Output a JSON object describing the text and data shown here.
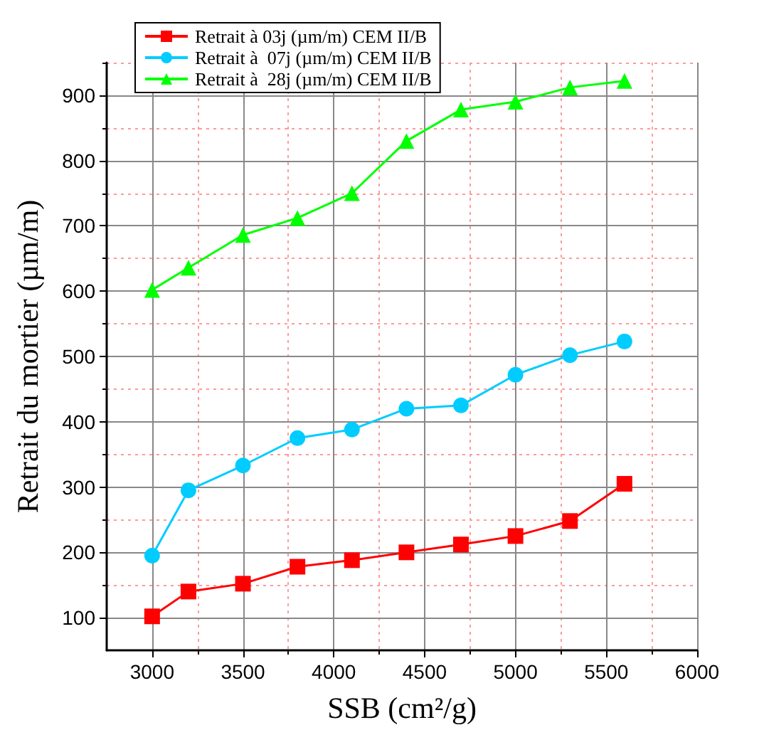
{
  "chart_data": {
    "type": "line",
    "xlabel": "SSB (cm²/g)",
    "ylabel": "Retrait du mortier (µm/m)",
    "x": [
      3000,
      3200,
      3500,
      3800,
      4100,
      4400,
      4700,
      5000,
      5300,
      5600
    ],
    "series": [
      {
        "name": "Retrait à 03j (µm/m) CEM II/B",
        "color": "#ff0000",
        "marker": "square",
        "values": [
          102,
          140,
          152,
          178,
          188,
          200,
          212,
          225,
          248,
          305
        ]
      },
      {
        "name": "Retrait à  07j (µm/m) CEM II/B",
        "color": "#00ccff",
        "marker": "circle",
        "values": [
          195,
          295,
          333,
          375,
          388,
          420,
          425,
          472,
          502,
          523
        ]
      },
      {
        "name": "Retrait à  28j (µm/m) CEM II/B",
        "color": "#00ff00",
        "marker": "triangle",
        "values": [
          602,
          636,
          686,
          712,
          750,
          830,
          878,
          890,
          912,
          922
        ]
      }
    ],
    "xlim": [
      2750,
      6000
    ],
    "xticks": [
      3000,
      {
        "value": 3250,
        "label": null
      },
      3500,
      {
        "value": 3750,
        "label": null
      },
      4000,
      {
        "value": 4250,
        "label": null
      },
      4500,
      {
        "value": 4750,
        "label": null
      },
      5000,
      {
        "value": 5250,
        "label": null
      },
      5500,
      {
        "value": 5750,
        "label": null
      },
      6000
    ],
    "ylim": [
      50,
      950
    ],
    "yticks": [
      100,
      {
        "value": 150,
        "label": null
      },
      200,
      {
        "value": 250,
        "label": null
      },
      300,
      {
        "value": 350,
        "label": null
      },
      400,
      {
        "value": 450,
        "label": null
      },
      500,
      {
        "value": 550,
        "label": null
      },
      600,
      {
        "value": 650,
        "label": null
      },
      700,
      {
        "value": 750,
        "label": null
      },
      800,
      {
        "value": 850,
        "label": null
      },
      900,
      {
        "value": 950,
        "label": null
      }
    ],
    "grid": true,
    "legend": "top left",
    "line_style": "solid"
  }
}
